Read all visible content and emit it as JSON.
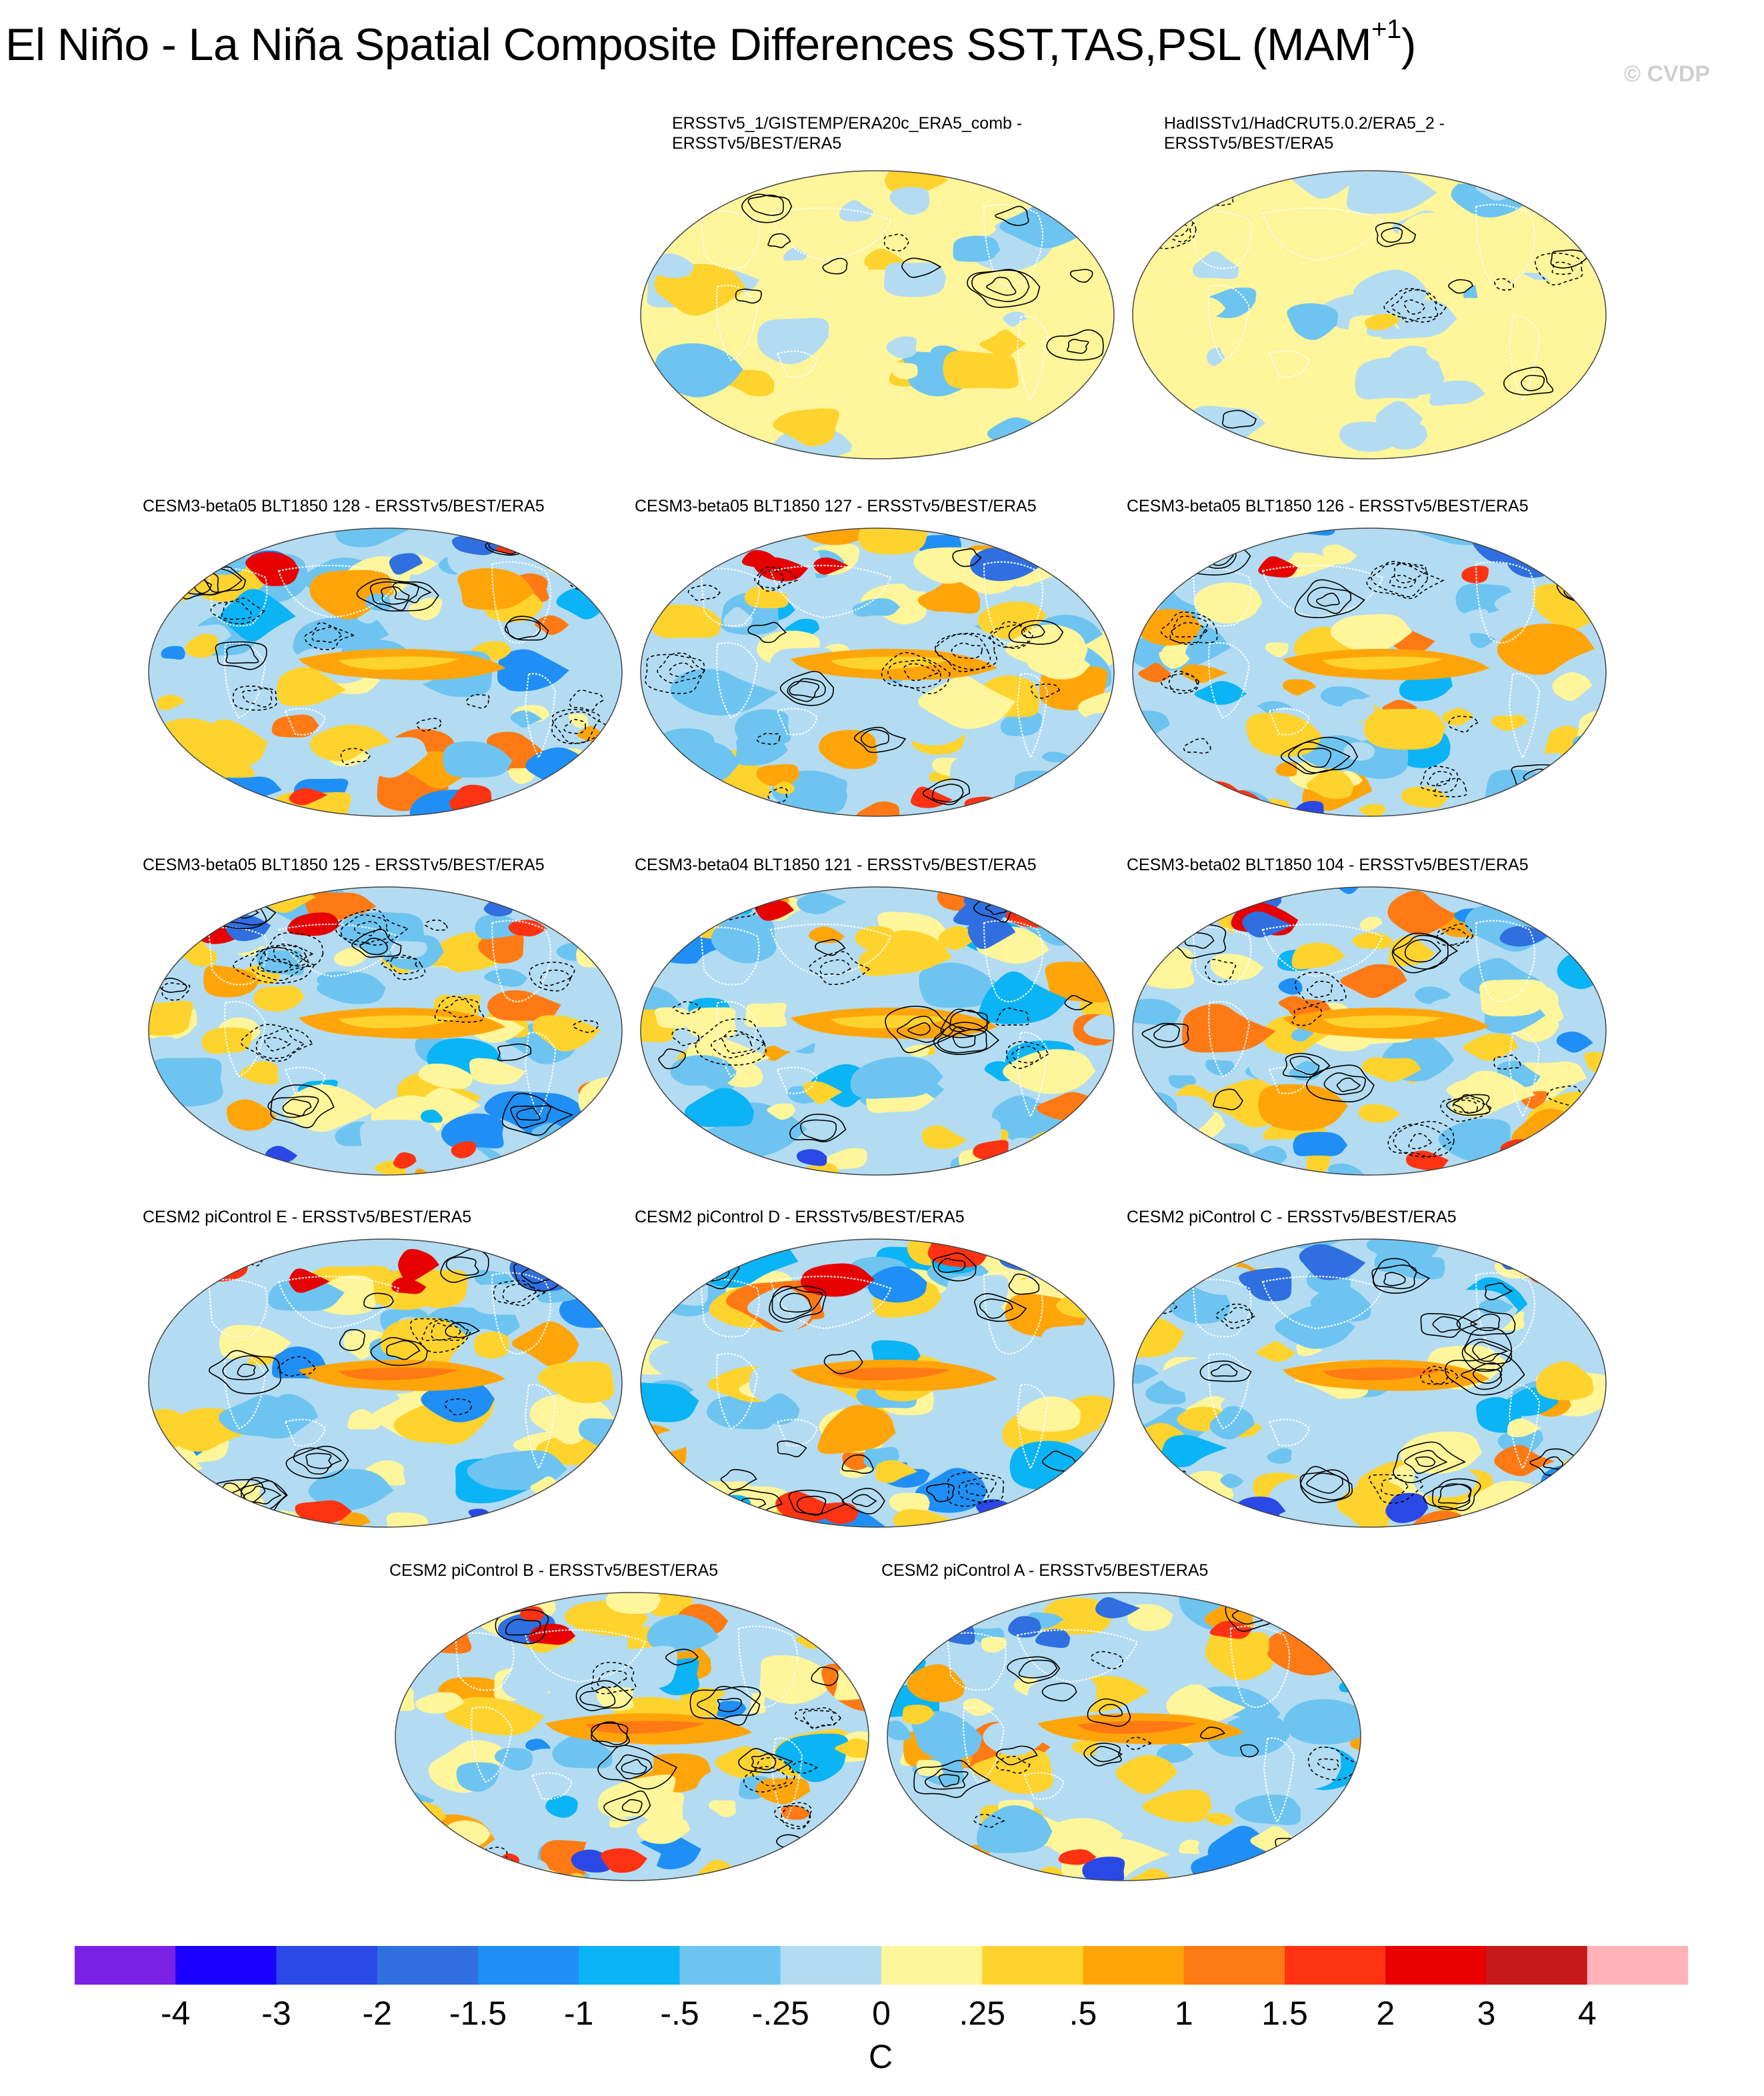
{
  "title": "El Niño - La Niña Spatial Composite Differences SST,TAS,PSL (MAM",
  "title_superscript": "+1",
  "title_suffix": ")",
  "watermark": "© CVDP",
  "panels": [
    {
      "label_line1": "ERSSTv5_1/GISTEMP/ERA20c_ERA5_comb -",
      "label_line2": "ERSSTv5/BEST/ERA5",
      "variant": 0
    },
    {
      "label_line1": "HadISSTv1/HadCRUT5.0.2/ERA5_2 -",
      "label_line2": "ERSSTv5/BEST/ERA5",
      "variant": 0
    },
    {
      "label_line1": "CESM3-beta05 BLT1850 128 - ERSSTv5/BEST/ERA5",
      "label_line2": "",
      "variant": 1
    },
    {
      "label_line1": "CESM3-beta05 BLT1850 127 - ERSSTv5/BEST/ERA5",
      "label_line2": "",
      "variant": 1
    },
    {
      "label_line1": "CESM3-beta05 BLT1850 126 - ERSSTv5/BEST/ERA5",
      "label_line2": "",
      "variant": 1
    },
    {
      "label_line1": "CESM3-beta05 BLT1850 125 - ERSSTv5/BEST/ERA5",
      "label_line2": "",
      "variant": 1
    },
    {
      "label_line1": "CESM3-beta04 BLT1850 121 - ERSSTv5/BEST/ERA5",
      "label_line2": "",
      "variant": 1
    },
    {
      "label_line1": "CESM3-beta02 BLT1850 104 - ERSSTv5/BEST/ERA5",
      "label_line2": "",
      "variant": 1
    },
    {
      "label_line1": "CESM2 piControl E - ERSSTv5/BEST/ERA5",
      "label_line2": "",
      "variant": 2
    },
    {
      "label_line1": "CESM2 piControl D - ERSSTv5/BEST/ERA5",
      "label_line2": "",
      "variant": 2
    },
    {
      "label_line1": "CESM2 piControl C - ERSSTv5/BEST/ERA5",
      "label_line2": "",
      "variant": 2
    },
    {
      "label_line1": "CESM2 piControl B - ERSSTv5/BEST/ERA5",
      "label_line2": "",
      "variant": 2
    },
    {
      "label_line1": "CESM2 piControl A - ERSSTv5/BEST/ERA5",
      "label_line2": "",
      "variant": 2
    }
  ],
  "colorbar": {
    "colors": [
      "#7b21e6",
      "#1a00ff",
      "#2a48e6",
      "#2f6fe0",
      "#1f8ff5",
      "#0bb4f5",
      "#6ec4f0",
      "#b3dcf2",
      "#fff59a",
      "#ffd32e",
      "#ffa50a",
      "#ff7a14",
      "#ff3311",
      "#e60000",
      "#c61a1a",
      "#ffb3b8"
    ],
    "labels": [
      "-4",
      "-3",
      "-2",
      "-1.5",
      "-1",
      "-.5",
      "-.25",
      "0",
      ".25",
      ".5",
      "1",
      "1.5",
      "2",
      "3",
      "4"
    ],
    "unit": "C"
  }
}
